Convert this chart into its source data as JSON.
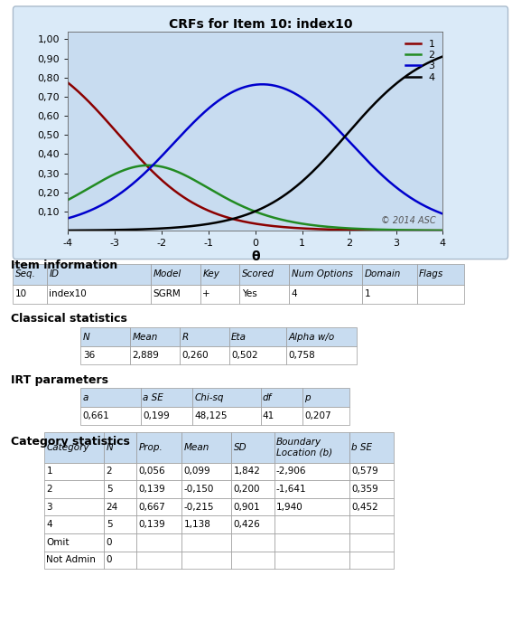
{
  "title": "CRFs for Item 10: index10",
  "xlabel": "θ",
  "ylabel_ticks": [
    "0,10",
    "0,20",
    "0,30",
    "0,40",
    "0,50",
    "0,60",
    "0,70",
    "0,80",
    "0,90",
    "1,00"
  ],
  "xlim": [
    -4,
    4
  ],
  "ylim": [
    0,
    1.05
  ],
  "xticks": [
    -4,
    -3,
    -2,
    -1,
    0,
    1,
    2,
    3,
    4
  ],
  "line_colors": [
    "#8B0000",
    "#228B22",
    "#0000CD",
    "#000000"
  ],
  "line_labels": [
    "1",
    "2",
    "3",
    "4"
  ],
  "plot_bg_color": "#C8DCF0",
  "outer_bg_color": "#DAEAF8",
  "copyright": "© 2014 ASC",
  "grm_a": 0.661,
  "grm_b": [
    -2.906,
    -1.641,
    1.94
  ],
  "item_info_headers": [
    "Seq.",
    "ID",
    "Model",
    "Key",
    "Scored",
    "Num Options",
    "Domain",
    "Flags"
  ],
  "item_info_data": [
    "10",
    "index10",
    "SGRM",
    "+",
    "Yes",
    "4",
    "1",
    ""
  ],
  "classical_headers": [
    "N",
    "Mean",
    "R",
    "Eta",
    "Alpha w/o"
  ],
  "classical_data": [
    "36",
    "2,889",
    "0,260",
    "0,502",
    "0,758"
  ],
  "irt_headers": [
    "a",
    "a SE",
    "Chi-sq",
    "df",
    "p"
  ],
  "irt_data": [
    "0,661",
    "0,199",
    "48,125",
    "41",
    "0,207"
  ],
  "cat_headers": [
    "Category",
    "N",
    "Prop.",
    "Mean",
    "SD",
    "Boundary\nLocation (b)",
    "b SE"
  ],
  "cat_data": [
    [
      "1",
      "2",
      "0,056",
      "0,099",
      "1,842",
      "-2,906",
      "0,579"
    ],
    [
      "2",
      "5",
      "0,139",
      "-0,150",
      "0,200",
      "-1,641",
      "0,359"
    ],
    [
      "3",
      "24",
      "0,667",
      "-0,215",
      "0,901",
      "1,940",
      "0,452"
    ],
    [
      "4",
      "5",
      "0,139",
      "1,138",
      "0,426",
      "",
      ""
    ],
    [
      "Omit",
      "0",
      "",
      "",
      "",
      "",
      ""
    ],
    [
      "Not Admin",
      "0",
      "",
      "",
      "",
      "",
      ""
    ]
  ],
  "table_header_color": "#C8DCF0",
  "table_edge_color": "#999999"
}
